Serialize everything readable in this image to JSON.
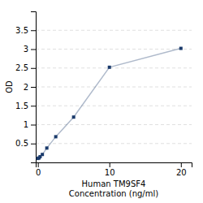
{
  "chart_data": {
    "type": "line",
    "x": [
      0,
      0.156,
      0.313,
      0.625,
      1.25,
      2.5,
      5,
      10,
      20
    ],
    "series": [
      {
        "values": [
          0.105,
          0.118,
          0.152,
          0.21,
          0.38,
          0.68,
          1.2,
          2.52,
          3.02
        ],
        "color": "#1a3a6b",
        "marker": "square"
      }
    ],
    "xlabel": "Human TM9SF4\nConcentration (ng/ml)",
    "ylabel": "OD",
    "xlim": [
      -0.3,
      21.5
    ],
    "ylim": [
      0,
      4.0
    ],
    "xticks": [
      0,
      10,
      20
    ],
    "yticks": [
      0.5,
      1.0,
      1.5,
      2.0,
      2.5,
      3.0,
      3.5
    ],
    "grid": true
  }
}
